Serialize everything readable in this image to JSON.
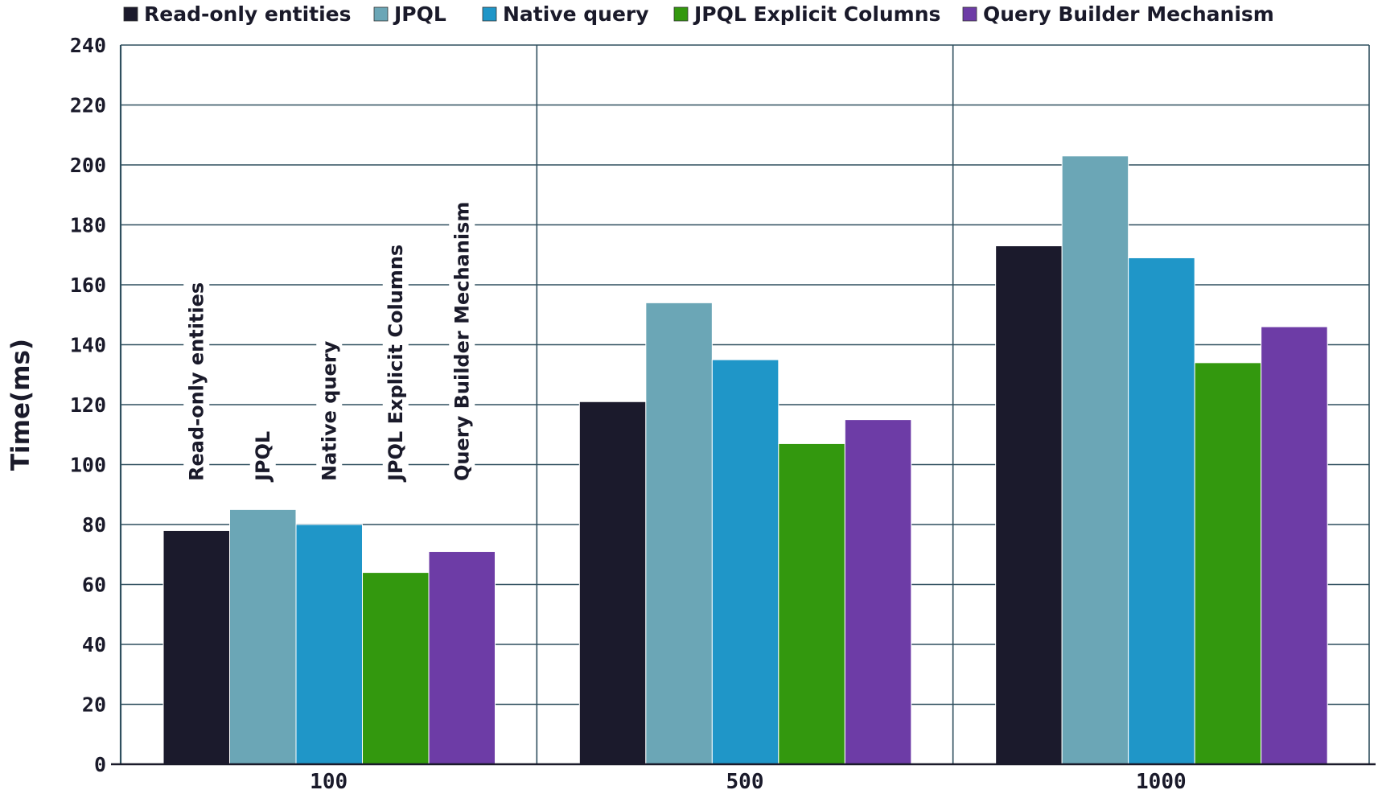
{
  "chart_data": {
    "type": "bar",
    "categories": [
      "100",
      "500",
      "1000"
    ],
    "series": [
      {
        "name": "Read-only entities",
        "values": [
          78,
          121,
          173
        ],
        "color": "#1b1a2c"
      },
      {
        "name": "JPQL",
        "values": [
          85,
          154,
          203
        ],
        "color": "#6ba6b6"
      },
      {
        "name": "Native query",
        "values": [
          80,
          135,
          169
        ],
        "color": "#1f96c8"
      },
      {
        "name": "JPQL Explicit Columns",
        "values": [
          64,
          107,
          134
        ],
        "color": "#33980e"
      },
      {
        "name": "Query Builder Mechanism",
        "values": [
          71,
          115,
          146
        ],
        "color": "#6d3ca6"
      }
    ],
    "ylabel": "Time(ms)",
    "xlabel": "",
    "ylim": [
      0,
      240
    ],
    "yticks": [
      0,
      20,
      40,
      60,
      80,
      100,
      120,
      140,
      160,
      180,
      200,
      220,
      240
    ],
    "grid": {
      "horizontal": true,
      "vertical_category_separators": true
    },
    "legend": "top",
    "bar_labels_on_first_group": true
  }
}
